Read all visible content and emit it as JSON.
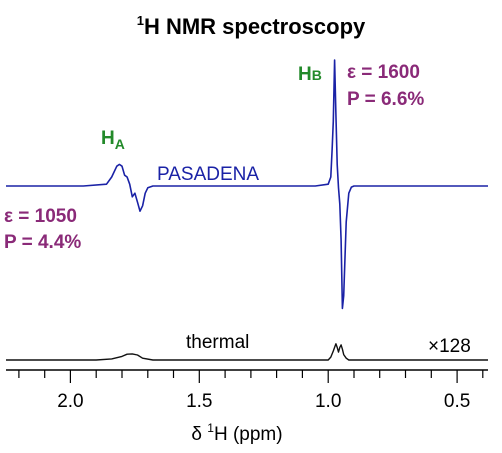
{
  "chart_data": {
    "type": "line",
    "title": {
      "sup": "1",
      "main": "H NMR spectroscopy"
    },
    "xlabel": {
      "prefix": "δ ",
      "sup": "1",
      "main": "H (ppm)"
    },
    "x_reversed": true,
    "xlim": [
      2.25,
      0.38
    ],
    "major_ticks": [
      2.0,
      1.5,
      1.0,
      0.5
    ],
    "tick_labels": [
      "2.0",
      "1.5",
      "1.0",
      "0.5"
    ],
    "minor_tick_step": 0.1,
    "grid": false,
    "series": [
      {
        "name": "PASADENA",
        "color": "#1a22a6",
        "x": [
          2.25,
          1.95,
          1.86,
          1.84,
          1.82,
          1.81,
          1.8,
          1.79,
          1.78,
          1.77,
          1.76,
          1.75,
          1.74,
          1.73,
          1.72,
          1.71,
          1.7,
          1.68,
          1.65,
          1.5,
          1.2,
          1.05,
          1.0,
          0.99,
          0.985,
          0.98,
          0.975,
          0.97,
          0.965,
          0.96,
          0.955,
          0.95,
          0.945,
          0.94,
          0.93,
          0.92,
          0.91,
          0.9,
          0.88,
          0.8,
          0.6,
          0.38
        ],
        "y": [
          0,
          0,
          0.05,
          0.25,
          0.55,
          0.6,
          0.55,
          0.3,
          0.25,
          0.05,
          -0.3,
          -0.2,
          -0.45,
          -0.7,
          -0.55,
          -0.2,
          -0.05,
          0,
          0,
          0,
          0,
          0,
          0.05,
          0.25,
          1.0,
          1.8,
          3.5,
          2.0,
          0.6,
          -0.05,
          -0.5,
          -1.5,
          -3.4,
          -3.05,
          -1.0,
          -0.2,
          -0.03,
          0,
          0,
          0,
          0,
          0
        ]
      },
      {
        "name": "thermal",
        "color": "#111111",
        "x": [
          2.25,
          1.9,
          1.84,
          1.8,
          1.78,
          1.76,
          1.74,
          1.72,
          1.68,
          1.5,
          1.2,
          1.0,
          0.99,
          0.98,
          0.97,
          0.965,
          0.96,
          0.955,
          0.95,
          0.945,
          0.94,
          0.93,
          0.92,
          0.9,
          0.8,
          0.38
        ],
        "y": [
          0,
          0,
          0.03,
          0.1,
          0.16,
          0.17,
          0.14,
          0.05,
          0,
          0,
          0,
          0,
          0.08,
          0.25,
          0.45,
          0.35,
          0.22,
          0.35,
          0.42,
          0.3,
          0.15,
          0.05,
          0,
          0,
          0,
          0
        ]
      }
    ],
    "annotations": {
      "ha_label": {
        "text": "H",
        "sub": "A",
        "color": "#238a2a"
      },
      "hb_label": {
        "text": "H",
        "sub": "B",
        "color": "#238a2a"
      },
      "pasadena_label": {
        "text": "PASADENA",
        "color": "#1a22a6"
      },
      "hb_values": {
        "line1": "ε = 1600",
        "line2": "P = 6.6%",
        "color": "#8a2a78"
      },
      "ha_values": {
        "line1": "ε = 1050",
        "line2": "P = 4.4%",
        "color": "#8a2a78"
      },
      "thermal_label": {
        "text": "thermal"
      },
      "scale_label": {
        "text": "×128"
      }
    }
  }
}
